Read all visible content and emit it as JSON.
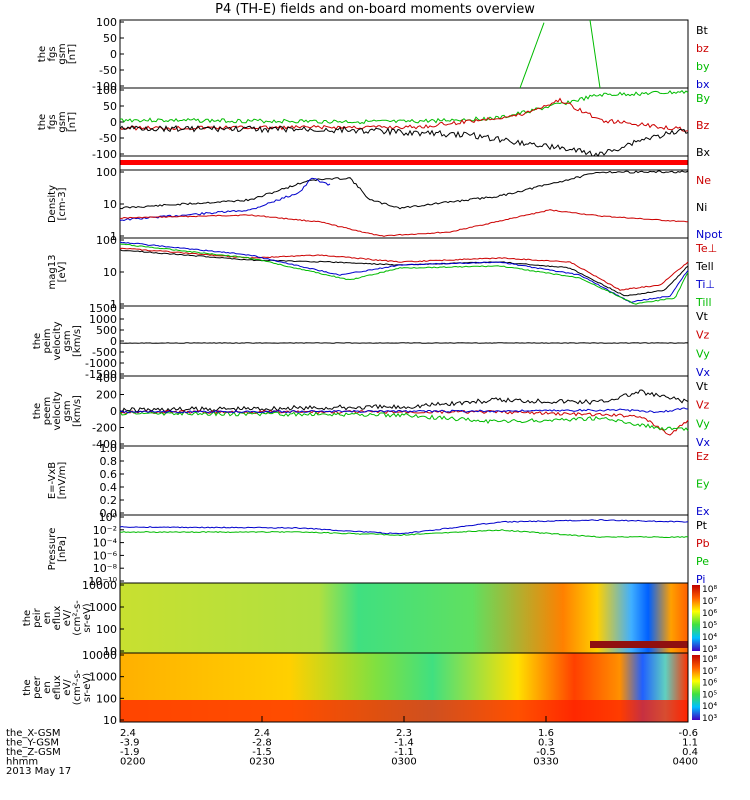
{
  "chart_data": {
    "type": "line",
    "title": "P4 (TH-E) fields and on-board moments overview",
    "x_ticks": [
      "0200",
      "0230",
      "0300",
      "0330",
      "0400"
    ],
    "ephemeris": {
      "labels": [
        "the_X-GSM",
        "the_Y-GSM",
        "the_Z-GSM",
        "hhmm",
        "2013 May 17"
      ],
      "rows": [
        [
          "2.4",
          "2.4",
          "2.3",
          "1.6",
          "-0.6"
        ],
        [
          "-3.9",
          "-2.8",
          "-1.4",
          "0.3",
          "1.1"
        ],
        [
          "-1.9",
          "-1.5",
          "-1.1",
          "-0.5",
          "0.4"
        ],
        [
          "0200",
          "0230",
          "0300",
          "0330",
          "0400"
        ]
      ]
    },
    "panels": [
      {
        "ylabel": [
          "the",
          "fgs",
          "gsm",
          "[nT]"
        ],
        "ylim": [
          -100,
          100
        ],
        "yticks": [
          "100",
          "50",
          "0",
          "-50",
          "-100"
        ],
        "legend": [
          [
            "Bt",
            "#000000"
          ],
          [
            "bz",
            "#cc0000"
          ],
          [
            "by",
            "#00bb00"
          ],
          [
            "bx",
            "#0000cc"
          ]
        ]
      },
      {
        "ylabel": [
          "the",
          "fgs",
          "gsm",
          "[nT]"
        ],
        "ylim": [
          -100,
          100
        ],
        "yticks": [
          "100",
          "50",
          "0",
          "-50",
          "-100"
        ],
        "legend": [
          [
            "By",
            "#00bb00"
          ],
          [
            "Bz",
            "#cc0000"
          ],
          [
            "Bx",
            "#000000"
          ]
        ]
      },
      {
        "ylabel": [],
        "status_bar_color": "#ff0000"
      },
      {
        "ylabel": [
          "Density",
          "[cm-3]"
        ],
        "scale": "log",
        "ylim": [
          1,
          100
        ],
        "yticks": [
          "100",
          "10",
          "1"
        ],
        "legend": [
          [
            "Ne",
            "#cc0000"
          ],
          [
            "Ni",
            "#000000"
          ],
          [
            "Npot",
            "#0000cc"
          ]
        ]
      },
      {
        "ylabel": [
          "mag13",
          "[eV]"
        ],
        "scale": "log",
        "ylim": [
          1,
          1000
        ],
        "yticks": [
          "100",
          "10",
          "1"
        ],
        "legend": [
          [
            "Te⊥",
            "#cc0000"
          ],
          [
            "Tell",
            "#000000"
          ],
          [
            "Ti⊥",
            "#0000cc"
          ],
          [
            "Till",
            "#00bb00"
          ]
        ]
      },
      {
        "ylabel": [
          "the",
          "peim",
          "velocity",
          "gsm",
          "[km/s]"
        ],
        "ylim": [
          -1500,
          1500
        ],
        "yticks": [
          "1500",
          "1000",
          "500",
          "0",
          "-500",
          "-1000",
          "-1500"
        ],
        "legend": [
          [
            "Vt",
            "#000000"
          ],
          [
            "Vz",
            "#cc0000"
          ],
          [
            "Vy",
            "#00bb00"
          ],
          [
            "Vx",
            "#0000cc"
          ]
        ]
      },
      {
        "ylabel": [
          "the",
          "peem",
          "velocity",
          "gsm",
          "[km/s]"
        ],
        "ylim": [
          -400,
          400
        ],
        "yticks": [
          "400",
          "200",
          "0",
          "-200",
          "-400"
        ],
        "legend": [
          [
            "Vt",
            "#000000"
          ],
          [
            "Vz",
            "#cc0000"
          ],
          [
            "Vy",
            "#00bb00"
          ],
          [
            "Vx",
            "#0000cc"
          ]
        ]
      },
      {
        "ylabel": [
          "E=-VxB",
          "[mV/m]"
        ],
        "ylim": [
          0,
          1
        ],
        "yticks": [
          "1.0",
          "0.8",
          "0.6",
          "0.4",
          "0.2",
          "0.0"
        ],
        "legend": [
          [
            "Ez",
            "#cc0000"
          ],
          [
            "Ey",
            "#00bb00"
          ],
          [
            "Ex",
            "#0000cc"
          ]
        ]
      },
      {
        "ylabel": [
          "Pressure",
          "[nPa]"
        ],
        "scale": "log",
        "ylim": [
          1e-10,
          1
        ],
        "yticks": [
          "10⁰",
          "10⁻²",
          "10⁻⁴",
          "10⁻⁶",
          "10⁻⁸",
          "10⁻¹⁰"
        ],
        "legend": [
          [
            "Pt",
            "#000000"
          ],
          [
            "Pb",
            "#cc0000"
          ],
          [
            "Pe",
            "#00bb00"
          ],
          [
            "Pi",
            "#0000cc"
          ]
        ]
      },
      {
        "ylabel": [
          "the",
          "peir",
          "en",
          "eflux",
          "eV/",
          "(cm²-s-",
          "sr-eV)"
        ],
        "type": "spectrogram",
        "yticks": [
          "10000",
          "1000",
          "100",
          "10"
        ],
        "colorbar": [
          "10⁸",
          "10⁷",
          "10⁶",
          "10⁵",
          "10⁴",
          "10³"
        ]
      },
      {
        "ylabel": [
          "the",
          "peer",
          "en",
          "eflux",
          "eV/",
          "(cm²-s-",
          "sr-eV)"
        ],
        "type": "spectrogram",
        "yticks": [
          "10000",
          "1000",
          "100",
          "10"
        ],
        "colorbar": [
          "10⁸",
          "10⁷",
          "10⁶",
          "10⁵",
          "10⁴",
          "10³"
        ]
      }
    ]
  }
}
